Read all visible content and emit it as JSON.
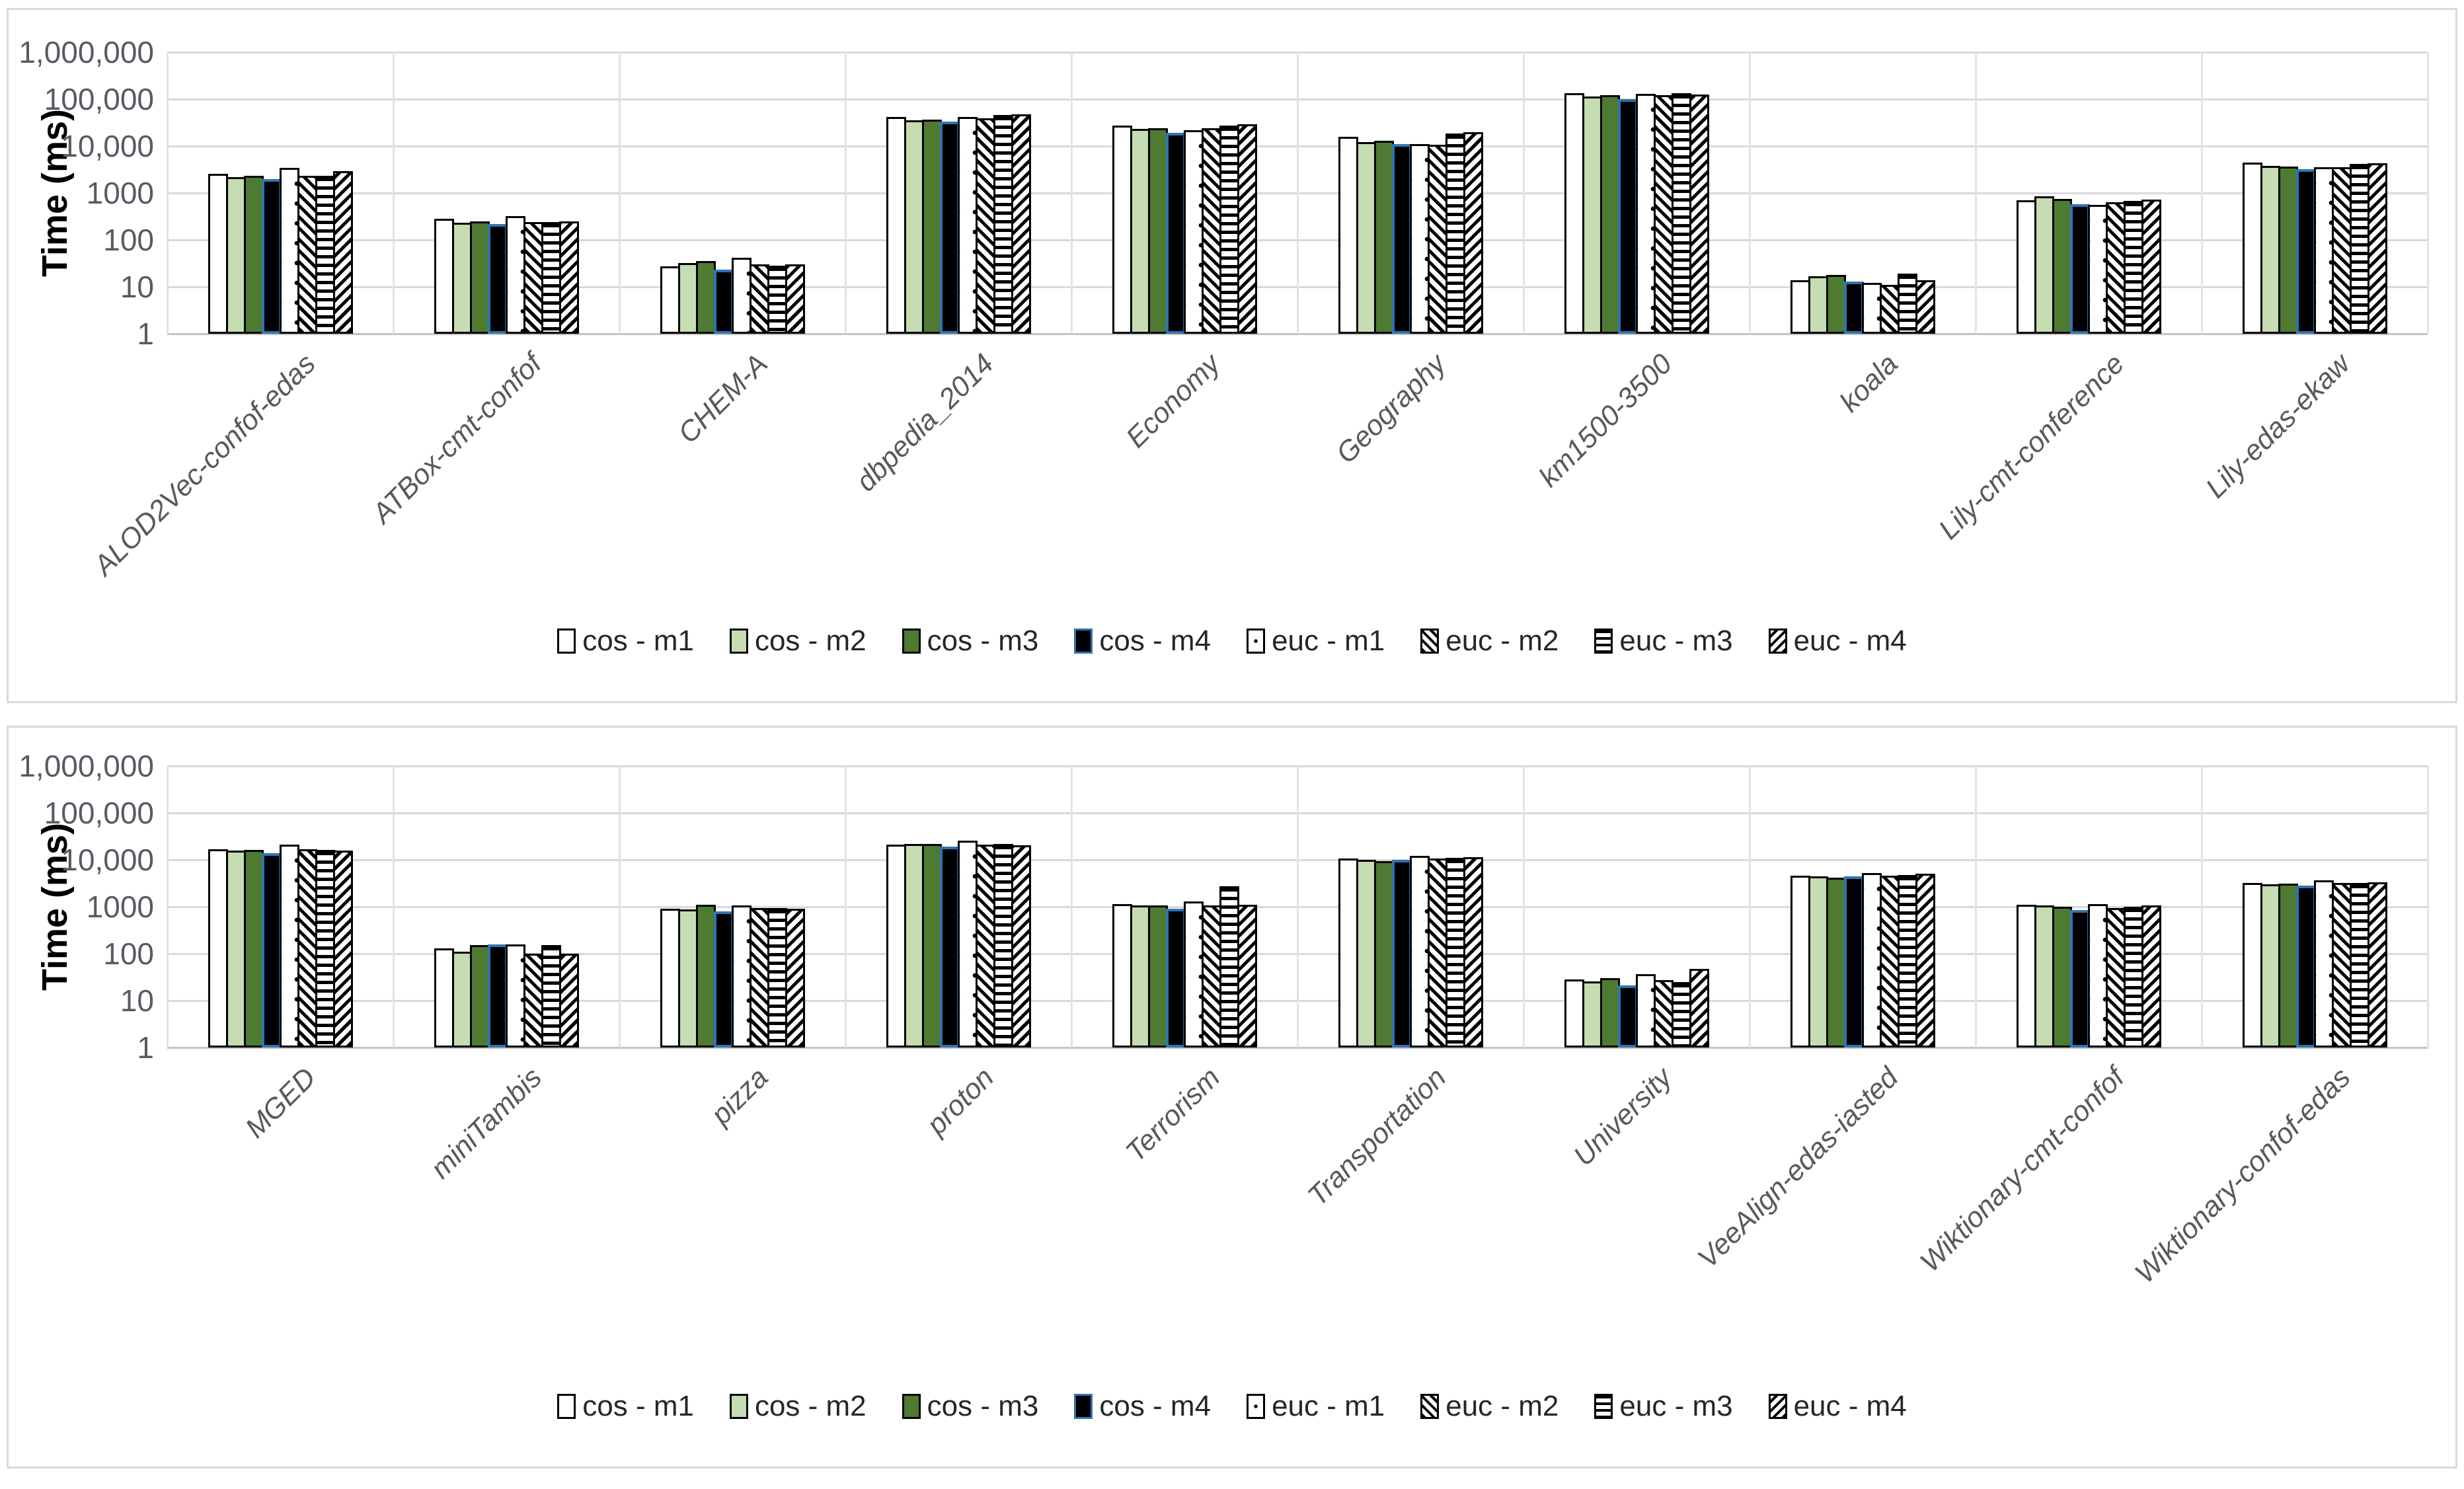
{
  "colors": {
    "panel_border": "#d9d9d9",
    "gridline": "#d9d9d9",
    "axis_tick_text": "#565b63",
    "category_label_text": "#595959",
    "legend_text": "#262626",
    "series_light_green": "#c6dcb2",
    "series_dark_green": "#4f7a32",
    "series_black_fill": "#000000",
    "series_blue_border": "#2e74b5",
    "bar_border": "#000000"
  },
  "legend": {
    "items": [
      {
        "label": "cos - m1",
        "style": "white"
      },
      {
        "label": "cos - m2",
        "style": "lightgreen"
      },
      {
        "label": "cos - m3",
        "style": "darkgreen"
      },
      {
        "label": "cos - m4",
        "style": "blackblue"
      },
      {
        "label": "euc - m1",
        "style": "dots"
      },
      {
        "label": "euc - m2",
        "style": "diagup"
      },
      {
        "label": "euc - m3",
        "style": "hlines"
      },
      {
        "label": "euc - m4",
        "style": "diagdown"
      }
    ]
  },
  "chart_data": [
    {
      "type": "bar",
      "title": "",
      "ylabel": "Time (ms)",
      "xlabel": "",
      "y_scale": "log",
      "ylim": [
        1,
        1000000
      ],
      "y_ticks": [
        "1,000,000",
        "100,000",
        "10,000",
        "1000",
        "100",
        "10",
        "1"
      ],
      "grid": "horizontal-and-category-separators",
      "legend_position": "bottom",
      "categories": [
        "ALOD2Vec-confof-edas",
        "ATBox-cmt-confof",
        "CHEM-A",
        "dbpedia_2014",
        "Economy",
        "Geography",
        "km1500-3500",
        "koala",
        "Lily-cmt-conference",
        "Lily-edas-ekaw"
      ],
      "series": [
        {
          "name": "cos - m1",
          "style": "white",
          "values": [
            2600,
            280,
            27,
            42000,
            27000,
            16000,
            135000,
            14,
            700,
            4400
          ]
        },
        {
          "name": "cos - m2",
          "style": "lightgreen",
          "values": [
            2150,
            230,
            32,
            36000,
            23000,
            12000,
            115000,
            17,
            850,
            3800
          ]
        },
        {
          "name": "cos - m3",
          "style": "darkgreen",
          "values": [
            2300,
            245,
            36,
            37000,
            24000,
            13000,
            122000,
            18,
            750,
            3700
          ]
        },
        {
          "name": "cos - m4",
          "style": "blackblue",
          "values": [
            2000,
            215,
            23,
            33000,
            19000,
            11000,
            100000,
            13,
            580,
            3200
          ]
        },
        {
          "name": "euc - m1",
          "style": "dots",
          "values": [
            3400,
            320,
            42,
            41000,
            22000,
            11000,
            128000,
            12,
            560,
            3500
          ]
        },
        {
          "name": "euc - m2",
          "style": "diagup",
          "values": [
            2350,
            240,
            30,
            39000,
            24000,
            10500,
            120000,
            11,
            630,
            3600
          ]
        },
        {
          "name": "euc - m3",
          "style": "hlines",
          "values": [
            2300,
            240,
            28,
            46000,
            27000,
            18500,
            133000,
            19,
            680,
            4100
          ]
        },
        {
          "name": "euc - m4",
          "style": "diagdown",
          "values": [
            2950,
            245,
            30,
            48000,
            29000,
            20000,
            126000,
            14,
            730,
            4300
          ]
        }
      ]
    },
    {
      "type": "bar",
      "title": "",
      "ylabel": "Time (ms)",
      "xlabel": "",
      "y_scale": "log",
      "ylim": [
        1,
        1000000
      ],
      "y_ticks": [
        "1,000,000",
        "100,000",
        "10,000",
        "1000",
        "100",
        "10",
        "1"
      ],
      "grid": "horizontal-and-category-separators",
      "legend_position": "bottom",
      "categories": [
        "MGED",
        "miniTambis",
        "pizza",
        "proton",
        "Terrorism",
        "Transportation",
        "University",
        "VeeAlign-edas-iasted",
        "Wiktionary-cmt-confof",
        "Wiktionary-confof-edas"
      ],
      "series": [
        {
          "name": "cos - m1",
          "style": "white",
          "values": [
            17000,
            130,
            900,
            21000,
            1150,
            10500,
            28,
            4600,
            1100,
            3200
          ]
        },
        {
          "name": "cos - m2",
          "style": "lightgreen",
          "values": [
            15500,
            110,
            880,
            21500,
            1050,
            10000,
            26,
            4400,
            1050,
            3000
          ]
        },
        {
          "name": "cos - m3",
          "style": "darkgreen",
          "values": [
            16500,
            150,
            1100,
            22000,
            1050,
            9500,
            30,
            4200,
            1000,
            3100
          ]
        },
        {
          "name": "cos - m4",
          "style": "blackblue",
          "values": [
            14000,
            155,
            800,
            19000,
            900,
            10000,
            21,
            4400,
            850,
            2800
          ]
        },
        {
          "name": "euc - m1",
          "style": "dots",
          "values": [
            21000,
            160,
            1050,
            26000,
            1300,
            12000,
            37,
            5200,
            1150,
            3700
          ]
        },
        {
          "name": "euc - m2",
          "style": "diagup",
          "values": [
            17000,
            100,
            950,
            21000,
            1050,
            10500,
            27,
            4600,
            950,
            3200
          ]
        },
        {
          "name": "euc - m3",
          "style": "hlines",
          "values": [
            16500,
            150,
            950,
            21500,
            2700,
            11000,
            25,
            4800,
            1000,
            3200
          ]
        },
        {
          "name": "euc - m4",
          "style": "diagdown",
          "values": [
            16000,
            100,
            920,
            20500,
            1100,
            11500,
            48,
            5000,
            1050,
            3300
          ]
        }
      ]
    }
  ]
}
